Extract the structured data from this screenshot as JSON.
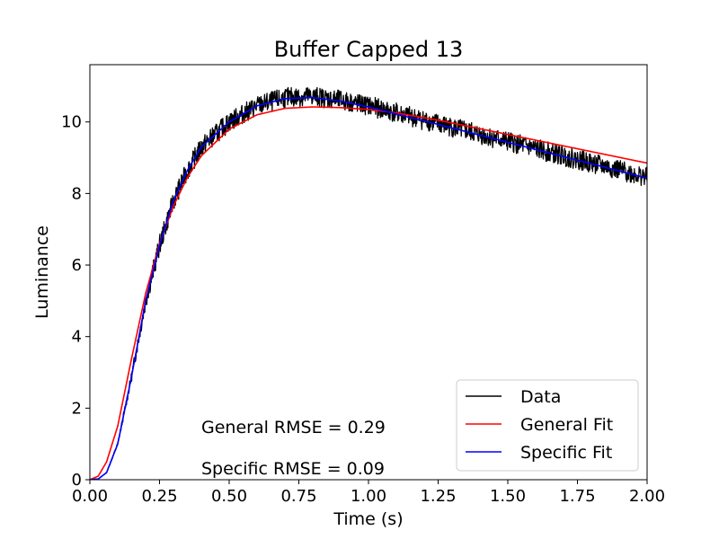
{
  "chart_data": {
    "type": "line",
    "title": "Buffer Capped 13",
    "xlabel": "Time (s)",
    "ylabel": "Luminance",
    "xlim": [
      0,
      2.0
    ],
    "ylim": [
      0,
      11.6
    ],
    "xticks": [
      0.0,
      0.25,
      0.5,
      0.75,
      1.0,
      1.25,
      1.5,
      1.75,
      2.0
    ],
    "xtick_labels": [
      "0.00",
      "0.25",
      "0.50",
      "0.75",
      "1.00",
      "1.25",
      "1.50",
      "1.75",
      "2.00"
    ],
    "yticks": [
      0,
      2,
      4,
      6,
      8,
      10
    ],
    "ytick_labels": [
      "0",
      "2",
      "4",
      "6",
      "8",
      "10"
    ],
    "grid": false,
    "legend_position": "bottom-right",
    "series": [
      {
        "name": "Data",
        "color": "#000000",
        "noisy": true,
        "x": [
          0.0,
          0.03,
          0.06,
          0.1,
          0.15,
          0.2,
          0.25,
          0.3,
          0.35,
          0.4,
          0.5,
          0.6,
          0.7,
          0.8,
          0.9,
          1.0,
          1.1,
          1.25,
          1.5,
          1.75,
          2.0
        ],
        "y": [
          0.0,
          0.02,
          0.2,
          1.0,
          2.9,
          5.0,
          6.55,
          7.8,
          8.65,
          9.3,
          10.0,
          10.45,
          10.68,
          10.72,
          10.6,
          10.45,
          10.25,
          9.95,
          9.45,
          8.95,
          8.45
        ]
      },
      {
        "name": "General Fit",
        "color": "#ff0000",
        "noisy": false,
        "x": [
          0.0,
          0.03,
          0.06,
          0.1,
          0.15,
          0.2,
          0.25,
          0.3,
          0.35,
          0.4,
          0.5,
          0.6,
          0.7,
          0.8,
          0.9,
          1.0,
          1.1,
          1.25,
          1.5,
          1.75,
          2.0
        ],
        "y": [
          0.0,
          0.1,
          0.5,
          1.5,
          3.4,
          5.2,
          6.6,
          7.65,
          8.45,
          9.05,
          9.8,
          10.2,
          10.38,
          10.42,
          10.4,
          10.35,
          10.25,
          10.05,
          9.65,
          9.25,
          8.85
        ]
      },
      {
        "name": "Specific Fit",
        "color": "#0000ff",
        "noisy": false,
        "x": [
          0.0,
          0.03,
          0.06,
          0.1,
          0.15,
          0.2,
          0.25,
          0.3,
          0.35,
          0.4,
          0.5,
          0.6,
          0.7,
          0.8,
          0.9,
          1.0,
          1.1,
          1.25,
          1.5,
          1.75,
          2.0
        ],
        "y": [
          0.0,
          0.02,
          0.2,
          1.0,
          2.9,
          5.0,
          6.55,
          7.8,
          8.65,
          9.3,
          10.0,
          10.45,
          10.65,
          10.68,
          10.58,
          10.42,
          10.22,
          9.93,
          9.43,
          8.93,
          8.43
        ]
      }
    ],
    "annotations": [
      {
        "text": "General RMSE = 0.29",
        "x": 0.4,
        "y": 1.3
      },
      {
        "text": "Specific RMSE = 0.09",
        "x": 0.4,
        "y": 0.15
      }
    ]
  }
}
